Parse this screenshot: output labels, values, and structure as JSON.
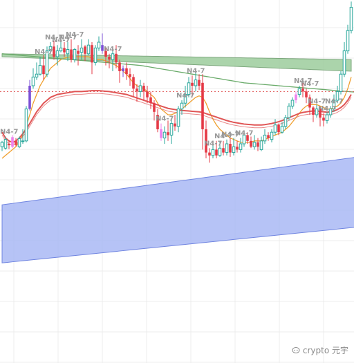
{
  "watermark": {
    "text": "crypto 元宇"
  },
  "chart_data": {
    "type": "candlestick",
    "title": "",
    "xlabel": "",
    "ylabel": "",
    "grid": true,
    "legend": "none",
    "ylim": [
      0,
      100
    ],
    "dashed_level": 78,
    "colors": {
      "up": "#26a69a",
      "down": "#e53945",
      "marker": "#7b4fd6",
      "pink": "#ee82ee",
      "dashed_line": "#e05555",
      "grid": "#ececec"
    },
    "marker_label": "N4-7",
    "candles": [
      [
        59.0,
        60.5,
        57.5,
        61.0
      ],
      [
        58.5,
        61.5,
        58.0,
        62.5
      ],
      [
        60.0,
        59.5,
        58.2,
        61.2
      ],
      [
        59.0,
        62.3,
        58.5,
        63.0
      ],
      [
        61.0,
        59.6,
        59.0,
        62.0
      ],
      [
        59.0,
        61.8,
        58.5,
        62.5
      ],
      [
        61.0,
        61.0,
        60.0,
        65.0
      ],
      [
        61.0,
        72.0,
        60.5,
        73.0
      ],
      [
        72.0,
        80.0,
        71.5,
        82.0
      ],
      [
        80.0,
        83.0,
        79.0,
        86.0
      ],
      [
        83.0,
        84.0,
        82.0,
        88.0
      ],
      [
        84.0,
        87.0,
        83.5,
        90.0
      ],
      [
        87.0,
        84.0,
        82.0,
        90.5
      ],
      [
        84.0,
        92.0,
        83.0,
        93.5
      ],
      [
        92.0,
        93.5,
        91.0,
        95.0
      ],
      [
        93.5,
        90.0,
        89.0,
        95.5
      ],
      [
        90.0,
        92.0,
        87.0,
        94.0
      ],
      [
        92.0,
        93.0,
        91.5,
        95.0
      ],
      [
        93.0,
        91.5,
        90.0,
        95.0
      ],
      [
        91.0,
        92.5,
        88.5,
        95.0
      ],
      [
        92.5,
        89.0,
        88.0,
        96.0
      ],
      [
        89.0,
        92.5,
        88.0,
        93.0
      ],
      [
        92.0,
        91.0,
        87.0,
        94.0
      ],
      [
        91.5,
        93.0,
        89.0,
        96.0
      ],
      [
        93.5,
        91.0,
        88.5,
        94.0
      ],
      [
        91.0,
        94.0,
        90.5,
        96.0
      ],
      [
        94.0,
        88.0,
        84.0,
        95.0
      ],
      [
        88.0,
        93.0,
        87.0,
        94.0
      ],
      [
        93.0,
        95.0,
        92.0,
        97.0
      ],
      [
        94.0,
        92.0,
        91.0,
        98.0
      ],
      [
        92.0,
        90.0,
        87.0,
        93.0
      ],
      [
        90.0,
        89.0,
        86.0,
        91.0
      ],
      [
        89.0,
        91.0,
        85.0,
        92.0
      ],
      [
        91.0,
        88.0,
        86.0,
        94.0
      ],
      [
        88.0,
        85.0,
        81.0,
        89.0
      ],
      [
        85.0,
        86.0,
        83.0,
        87.0
      ],
      [
        86.0,
        84.0,
        82.0,
        88.0
      ],
      [
        84.0,
        83.0,
        80.0,
        86.0
      ],
      [
        83.0,
        79.0,
        76.0,
        84.0
      ],
      [
        79.0,
        78.0,
        74.5,
        80.5
      ],
      [
        78.0,
        80.0,
        76.0,
        82.0
      ],
      [
        80.0,
        78.0,
        75.0,
        81.0
      ],
      [
        78.0,
        76.0,
        74.0,
        80.0
      ],
      [
        76.0,
        74.0,
        72.0,
        78.0
      ],
      [
        74.0,
        71.0,
        68.0,
        75.0
      ],
      [
        70.0,
        65.0,
        64.0,
        72.0
      ],
      [
        65.0,
        62.0,
        61.0,
        67.0
      ],
      [
        62.0,
        64.0,
        60.0,
        66.0
      ],
      [
        64.0,
        63.0,
        61.0,
        68.0
      ],
      [
        63.0,
        67.0,
        60.0,
        69.0
      ],
      [
        67.0,
        66.0,
        64.5,
        70.0
      ],
      [
        66.0,
        72.0,
        64.0,
        73.0
      ],
      [
        72.0,
        74.0,
        70.0,
        75.0
      ],
      [
        74.0,
        77.0,
        72.5,
        80.0
      ],
      [
        77.0,
        81.0,
        76.0,
        83.0
      ],
      [
        81.0,
        80.0,
        76.0,
        83.5
      ],
      [
        80.0,
        82.0,
        78.0,
        85.0
      ],
      [
        82.0,
        80.0,
        78.5,
        84.0
      ],
      [
        81.0,
        65.0,
        58.0,
        84.0
      ],
      [
        65.0,
        57.0,
        55.0,
        68.0
      ],
      [
        57.0,
        56.0,
        53.5,
        58.5
      ],
      [
        56.0,
        58.0,
        55.0,
        60.0
      ],
      [
        58.0,
        56.0,
        55.0,
        61.0
      ],
      [
        56.0,
        58.5,
        55.5,
        61.0
      ],
      [
        58.5,
        57.0,
        56.0,
        61.0
      ],
      [
        57.0,
        60.0,
        56.0,
        61.5
      ],
      [
        60.0,
        57.0,
        55.5,
        62.0
      ],
      [
        57.0,
        59.0,
        56.0,
        62.0
      ],
      [
        59.0,
        58.0,
        57.0,
        61.0
      ],
      [
        58.0,
        60.0,
        57.0,
        62.0
      ],
      [
        60.0,
        63.0,
        59.0,
        64.0
      ],
      [
        63.0,
        61.0,
        60.0,
        64.0
      ],
      [
        61.0,
        59.0,
        58.5,
        62.5
      ],
      [
        59.0,
        60.5,
        58.0,
        63.0
      ],
      [
        60.5,
        59.0,
        57.5,
        62.0
      ],
      [
        58.0,
        61.0,
        57.5,
        62.5
      ],
      [
        61.0,
        63.0,
        60.0,
        65.0
      ],
      [
        63.0,
        62.0,
        61.0,
        64.0
      ],
      [
        61.5,
        64.0,
        60.5,
        65.0
      ],
      [
        64.0,
        66.5,
        63.0,
        68.5
      ],
      [
        66.5,
        64.0,
        63.0,
        67.0
      ],
      [
        64.0,
        66.0,
        63.5,
        67.5
      ],
      [
        66.0,
        69.0,
        65.0,
        70.0
      ],
      [
        69.0,
        73.0,
        68.0,
        74.0
      ],
      [
        73.0,
        75.0,
        72.0,
        76.0
      ],
      [
        75.0,
        77.0,
        74.0,
        78.0
      ],
      [
        77.0,
        79.0,
        76.0,
        80.0
      ],
      [
        79.0,
        78.0,
        76.0,
        81.0
      ],
      [
        78.0,
        76.0,
        74.0,
        79.0
      ],
      [
        76.0,
        72.5,
        70.0,
        77.0
      ],
      [
        72.5,
        70.0,
        67.5,
        73.0
      ],
      [
        70.0,
        72.0,
        69.0,
        73.5
      ],
      [
        72.0,
        69.0,
        66.0,
        73.0
      ],
      [
        69.0,
        68.0,
        66.0,
        70.5
      ],
      [
        68.0,
        70.0,
        67.0,
        71.0
      ],
      [
        70.0,
        72.0,
        69.0,
        73.0
      ],
      [
        72.0,
        75.0,
        71.0,
        77.0
      ],
      [
        75.0,
        78.0,
        74.0,
        80.0
      ],
      [
        78.0,
        84.0,
        77.0,
        85.0
      ],
      [
        84.0,
        92.0,
        83.0,
        95.0
      ],
      [
        92.0,
        99.0,
        91.0,
        101.0
      ],
      [
        99.0,
        107.0,
        98.0,
        109.0
      ]
    ],
    "marked_candles": [
      8,
      29,
      35
    ],
    "pink_candles": [
      3,
      46,
      85
    ],
    "label_indices": [
      1,
      11,
      14,
      16,
      18,
      20,
      31,
      46,
      52,
      55,
      60,
      63,
      65,
      69,
      86,
      88,
      90,
      93,
      95,
      101
    ],
    "moving_averages": [
      {
        "color": "#f0a030",
        "values": [
          55,
          56,
          57,
          58,
          59,
          61,
          63,
          66,
          70,
          74,
          77,
          80,
          82,
          84,
          86,
          87,
          88,
          89,
          89.5,
          89.8,
          90,
          90,
          90,
          90,
          90,
          90,
          89.5,
          89,
          89,
          89,
          88.5,
          88,
          87.5,
          87,
          86,
          85,
          84,
          82.5,
          81,
          80,
          79.5,
          79,
          78,
          77,
          76,
          74,
          72,
          71,
          70,
          70,
          70.5,
          71,
          72,
          73,
          74,
          75,
          76,
          76.5,
          76,
          74,
          71,
          68.5,
          66.5,
          65,
          64,
          63,
          62,
          61.5,
          61,
          60.5,
          60.5,
          60.5,
          60.5,
          61,
          61,
          61,
          61.5,
          62,
          62.5,
          63,
          63.5,
          64,
          65,
          66,
          67.5,
          69,
          70.5,
          72,
          73,
          73.5,
          73.5,
          73.5,
          73,
          72.5,
          72,
          72,
          72.5,
          73,
          74,
          76,
          79,
          83
        ]
      },
      {
        "color": "#e05555",
        "values": [
          64,
          62,
          61,
          60.5,
          61,
          62,
          63.5,
          65,
          67,
          69,
          71,
          72.5,
          74,
          75,
          76,
          76.5,
          77,
          77.2,
          77.4,
          77.6,
          77.8,
          78,
          78,
          78,
          78.1,
          78.2,
          78.3,
          78.3,
          78.3,
          78.2,
          78.1,
          78,
          77.8,
          77.6,
          77.4,
          77.2,
          77,
          76.6,
          76.2,
          75.8,
          75.4,
          75,
          74.6,
          74.2,
          73.8,
          73.4,
          73,
          72.6,
          72.2,
          72,
          71.8,
          71.6,
          71.5,
          71.4,
          71.3,
          71.2,
          71.1,
          71,
          70.8,
          70.4,
          70,
          69.6,
          69.2,
          68.8,
          68.4,
          68,
          67.7,
          67.4,
          67.2,
          67,
          66.8,
          66.7,
          66.6,
          66.5,
          66.5,
          66.5,
          66.6,
          66.8,
          67,
          67.3,
          67.6,
          68,
          68.5,
          69,
          69.5,
          70,
          70.5,
          70.8,
          71,
          71.2,
          71.3,
          71.3,
          71.2,
          71,
          70.9,
          71,
          71.3,
          71.8,
          72.5,
          73.5,
          75,
          77
        ]
      },
      {
        "color": "#6aab6a",
        "values": [
          91.0,
          90.9,
          90.8,
          90.7,
          90.6,
          90.5,
          90.4,
          90.3,
          90.2,
          90.1,
          90.0,
          89.9,
          89.8,
          89.7,
          89.6,
          89.5,
          89.4,
          89.3,
          89.2,
          89.1,
          89.0,
          88.9,
          88.8,
          88.7,
          88.6,
          88.5,
          88.4,
          88.3,
          88.2,
          88.1,
          88.0,
          87.9,
          87.8,
          87.7,
          87.6,
          87.5,
          87.4,
          87.3,
          87.2,
          87.1,
          87.0,
          86.8,
          86.6,
          86.4,
          86.2,
          86.0,
          85.8,
          85.6,
          85.4,
          85.2,
          85.0,
          84.8,
          84.6,
          84.4,
          84.2,
          84.0,
          83.8,
          83.6,
          83.4,
          83.2,
          83.0,
          82.8,
          82.6,
          82.4,
          82.2,
          82.0,
          81.8,
          81.6,
          81.4,
          81.2,
          81.0,
          80.9,
          80.8,
          80.7,
          80.6,
          80.5,
          80.4,
          80.3,
          80.2,
          80.1,
          80.0,
          79.9,
          79.8,
          79.7,
          79.6,
          79.5,
          79.4,
          79.3,
          79.2,
          79.1,
          79.0,
          78.9,
          78.8,
          78.7,
          78.6,
          78.5,
          78.4,
          78.3,
          78.2,
          78.1,
          78.0,
          77.9,
          77.8
        ]
      }
    ],
    "bands": [
      {
        "name": "",
        "color": "#7ea87e",
        "fill": "#9ccc9c",
        "upper": [
          91.0,
          89.0
        ],
        "lower": [
          90.0,
          85.0
        ]
      }
    ]
  }
}
